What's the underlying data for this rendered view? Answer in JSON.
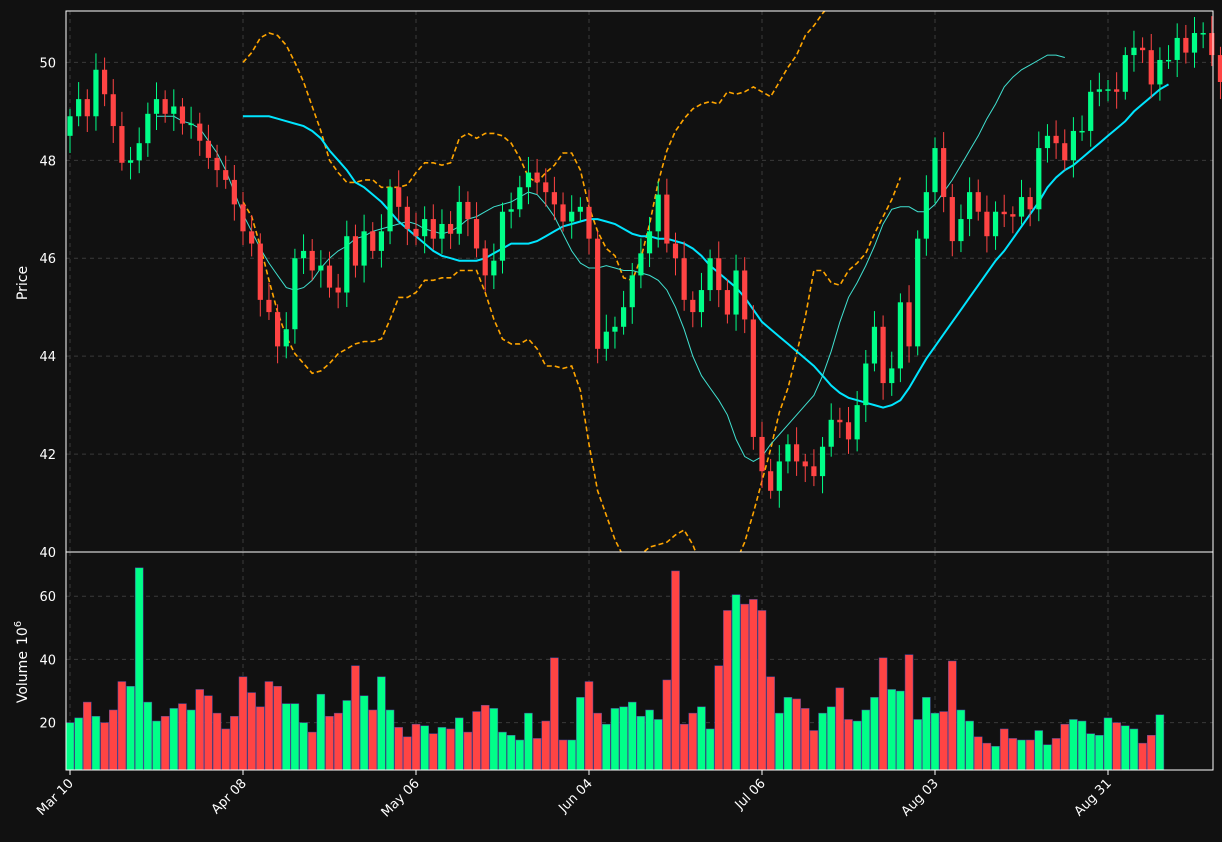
{
  "chart_data": [
    {
      "type": "candlestick",
      "panel": "price",
      "ylabel": "Price",
      "ylim": [
        40,
        51.05
      ],
      "yticks": [
        "40",
        "42",
        "44",
        "46",
        "48",
        "50"
      ],
      "xticks": [
        {
          "index": 0,
          "label": "Mar 10"
        },
        {
          "index": 20,
          "label": "Apr 08"
        },
        {
          "index": 40,
          "label": "May 06"
        },
        {
          "index": 60,
          "label": "Jun 04"
        },
        {
          "index": 80,
          "label": "Jul 06"
        },
        {
          "index": 100,
          "label": "Aug 03"
        },
        {
          "index": 120,
          "label": "Aug 31"
        }
      ],
      "grid": true,
      "colors": {
        "up": "#00ff88",
        "down": "#ff4444",
        "sma_long": "#00e5ff",
        "sma_short": "#40e0d0",
        "bands": "#ffa500",
        "background": "#111111",
        "grid": "#3a3a3a"
      },
      "close": [
        48.9,
        49.25,
        48.9,
        49.85,
        49.35,
        48.7,
        47.95,
        48.0,
        48.35,
        48.95,
        49.25,
        48.95,
        49.1,
        48.75,
        48.75,
        48.4,
        48.05,
        47.8,
        47.6,
        47.1,
        46.55,
        46.3,
        45.15,
        44.9,
        44.2,
        44.55,
        46.0,
        46.15,
        45.75,
        45.85,
        45.4,
        45.3,
        46.45,
        45.85,
        46.55,
        46.15,
        46.55,
        47.45,
        47.05,
        46.6,
        46.45,
        46.8,
        46.4,
        46.7,
        46.5,
        47.15,
        46.8,
        46.2,
        45.65,
        45.95,
        46.95,
        47.0,
        47.45,
        47.75,
        47.55,
        47.35,
        47.1,
        46.75,
        46.95,
        47.05,
        46.4,
        44.15,
        44.5,
        44.6,
        45.0,
        45.65,
        46.1,
        46.55,
        47.3,
        46.3,
        46.0,
        45.15,
        44.9,
        45.35,
        46.0,
        45.35,
        44.85,
        45.75,
        44.75,
        42.35,
        41.65,
        41.25,
        41.85,
        42.2,
        41.85,
        41.75,
        41.55,
        42.15,
        42.7,
        42.65,
        42.3,
        43.0,
        43.85,
        44.6,
        43.45,
        43.75,
        45.1,
        44.2,
        46.4,
        47.35,
        48.25,
        47.25,
        46.35,
        46.8,
        47.35,
        46.95,
        46.45,
        46.95,
        46.9,
        46.85,
        47.25,
        47.0,
        48.25,
        48.5,
        48.35,
        48.0,
        48.6,
        48.6,
        49.4,
        49.45,
        49.45,
        49.4,
        50.15,
        50.3,
        50.25,
        49.55,
        50.05,
        50.05,
        50.5,
        50.2,
        50.6,
        50.6,
        50.15,
        49.6
      ],
      "series": [
        {
          "values": [
            48.9,
            48.9,
            48.9,
            48.9,
            48.85,
            48.8,
            48.75,
            48.7,
            48.6,
            48.45,
            48.2,
            48.0,
            47.8,
            47.55,
            47.45,
            47.3,
            47.15,
            46.95,
            46.75,
            46.6,
            46.45,
            46.3,
            46.15,
            46.05,
            46.0,
            45.95,
            45.95,
            45.95,
            46.0,
            46.1,
            46.2,
            46.3,
            46.3,
            46.3,
            46.35,
            46.45,
            46.55,
            46.65,
            46.7,
            46.75,
            46.8,
            46.8,
            46.75,
            46.7,
            46.6,
            46.5,
            46.45,
            46.45,
            46.4,
            46.4,
            46.35,
            46.3,
            46.2,
            46.05,
            45.85,
            45.7,
            45.55,
            45.4,
            45.2,
            44.95,
            44.7,
            44.55,
            44.4,
            44.25,
            44.1,
            43.95,
            43.8,
            43.6,
            43.4,
            43.25,
            43.15,
            43.1,
            43.05,
            43.0,
            42.95,
            43.0,
            43.1,
            43.35,
            43.65,
            43.95,
            44.2,
            44.45,
            44.7,
            44.95,
            45.2,
            45.45,
            45.7,
            45.95,
            46.15,
            46.4,
            46.65,
            46.9,
            47.15,
            47.45,
            47.65,
            47.8,
            47.9,
            48.05,
            48.2,
            48.35,
            48.5,
            48.65,
            48.8,
            49.0,
            49.15,
            49.3,
            49.45,
            49.55
          ]
        },
        {
          "values": [
            48.9,
            48.9,
            48.9,
            48.8,
            48.75,
            48.65,
            48.4,
            48.15,
            47.8,
            47.35,
            46.9,
            46.55,
            46.2,
            45.9,
            45.65,
            45.4,
            45.35,
            45.4,
            45.55,
            45.8,
            46.0,
            46.15,
            46.25,
            46.4,
            46.45,
            46.55,
            46.6,
            46.65,
            46.7,
            46.75,
            46.7,
            46.6,
            46.55,
            46.5,
            46.55,
            46.65,
            46.8,
            46.85,
            46.95,
            47.05,
            47.1,
            47.15,
            47.25,
            47.35,
            47.3,
            47.1,
            46.85,
            46.5,
            46.15,
            45.9,
            45.8,
            45.8,
            45.85,
            45.8,
            45.75,
            45.75,
            45.7,
            45.65,
            45.55,
            45.35,
            45.0,
            44.55,
            44.0,
            43.6,
            43.35,
            43.1,
            42.8,
            42.3,
            41.95,
            41.85,
            41.95,
            42.2,
            42.4,
            42.6,
            42.8,
            43.0,
            43.2,
            43.6,
            44.1,
            44.7,
            45.2,
            45.5,
            45.85,
            46.25,
            46.7,
            47.0,
            47.05,
            47.05,
            46.95,
            46.95,
            47.1,
            47.35,
            47.6,
            47.9,
            48.2,
            48.5,
            48.85,
            49.15,
            49.5,
            49.7,
            49.85,
            49.95,
            50.05,
            50.15,
            50.15,
            50.1
          ]
        },
        {
          "values": [
            50.0,
            50.2,
            50.5,
            50.6,
            50.55,
            50.35,
            50.0,
            49.6,
            49.1,
            48.6,
            48.0,
            47.75,
            47.55,
            47.55,
            47.6,
            47.6,
            47.45,
            47.45,
            47.45,
            47.5,
            47.75,
            47.95,
            47.95,
            47.9,
            47.95,
            48.45,
            48.55,
            48.45,
            48.55,
            48.55,
            48.5,
            48.35,
            48.05,
            47.65,
            47.55,
            47.75,
            47.9,
            48.15,
            48.15,
            47.8,
            47.05,
            46.55,
            46.2,
            46.05,
            45.6,
            45.55,
            46.0,
            46.7,
            47.55,
            48.2,
            48.6,
            48.85,
            49.05,
            49.15,
            49.2,
            49.15,
            49.4,
            49.35,
            49.4,
            49.5,
            49.4,
            49.3,
            49.6,
            49.9,
            50.15,
            50.55,
            50.75,
            51.0,
            51.2
          ]
        },
        {
          "values": [
            47.15,
            46.85,
            46.25,
            45.55,
            44.9,
            44.4,
            44.05,
            43.85,
            43.65,
            43.7,
            43.85,
            44.05,
            44.15,
            44.25,
            44.3,
            44.3,
            44.35,
            44.75,
            45.2,
            45.2,
            45.3,
            45.55,
            45.55,
            45.6,
            45.6,
            45.75,
            45.75,
            45.75,
            45.3,
            44.75,
            44.35,
            44.25,
            44.25,
            44.35,
            44.15,
            43.8,
            43.8,
            43.75,
            43.8,
            43.3,
            42.2,
            41.25,
            40.75,
            40.25,
            39.9,
            39.85,
            39.95,
            40.1,
            40.15,
            40.2,
            40.35,
            40.45,
            40.15,
            39.7,
            39.45,
            39.3,
            39.45,
            39.8,
            40.2,
            40.8,
            41.45,
            42.1,
            42.85,
            43.35,
            44.05,
            44.8,
            45.75,
            45.75,
            45.5,
            45.45,
            45.75,
            45.9,
            46.1,
            46.5,
            46.85,
            47.2,
            47.65
          ]
        },
        {
          "name": "Volume",
          "unit": "10^6",
          "ylim": [
            5,
            74
          ],
          "yticks": [
            "20",
            "40",
            "60"
          ],
          "values": [
            20,
            21.5,
            26.5,
            22,
            20,
            24,
            33,
            31.5,
            69,
            26.5,
            20.5,
            22,
            24.5,
            26,
            24,
            30.5,
            28.5,
            23,
            18,
            22,
            34.5,
            29.5,
            25,
            33,
            31.5,
            26,
            26,
            20,
            17,
            29,
            22,
            23,
            27,
            38,
            28.5,
            24,
            34.5,
            24,
            18.5,
            15.5,
            19.5,
            19,
            16.5,
            18.5,
            18,
            21.5,
            17,
            23.5,
            25.5,
            24.5,
            17,
            16,
            14.5,
            23,
            15,
            20.5,
            40.5,
            14.5,
            14.5,
            28,
            33,
            23,
            19.5,
            24.5,
            25,
            26.5,
            22,
            24,
            21,
            33.5,
            68,
            19.5,
            23,
            25,
            18,
            38,
            55.5,
            60.5,
            57.5,
            59,
            55.5,
            34.5,
            23,
            28,
            27.5,
            24.5,
            17.5,
            23,
            25,
            31,
            21,
            20.5,
            24,
            28,
            40.5,
            30.5,
            30,
            41.5,
            21,
            28,
            23,
            23.5,
            39.5,
            24,
            20.5,
            15.5,
            13.5,
            12.5,
            18,
            15,
            14.5,
            14.5,
            17.5,
            13,
            15,
            19.5,
            21,
            20.5,
            16.5,
            16,
            21.5,
            20,
            19,
            18,
            13.5,
            16,
            22.5
          ]
        }
      ]
    }
  ]
}
